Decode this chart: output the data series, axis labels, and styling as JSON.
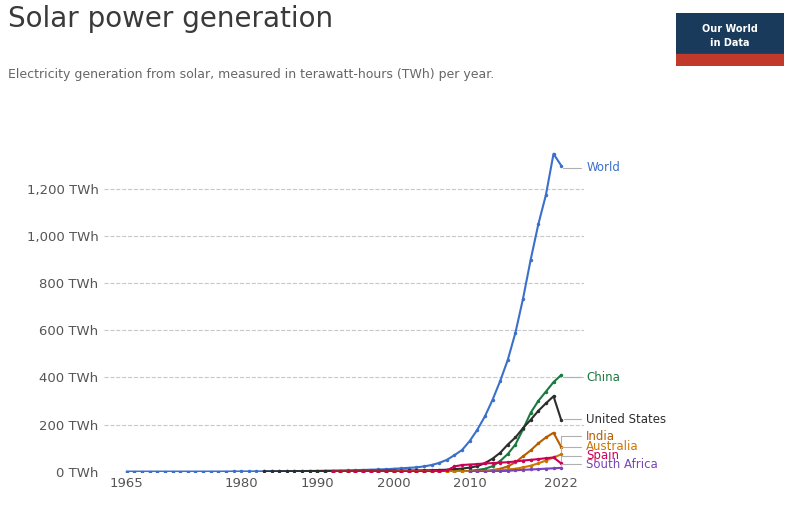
{
  "title": "Solar power generation",
  "subtitle": "Electricity generation from solar, measured in terawatt-hours (TWh) per year.",
  "background_color": "#ffffff",
  "grid_color": "#c8c8c8",
  "text_color": "#555555",
  "title_color": "#3a3a3a",
  "ylim": [
    0,
    1380
  ],
  "yticks": [
    0,
    200,
    400,
    600,
    800,
    1000,
    1200
  ],
  "ytick_labels": [
    "0 TWh",
    "200 TWh",
    "400 TWh",
    "600 TWh",
    "800 TWh",
    "1,000 TWh",
    "1,200 TWh"
  ],
  "xlim": [
    1962,
    2025
  ],
  "xticks": [
    1965,
    1980,
    1990,
    2000,
    2010,
    2022
  ],
  "series": {
    "World": {
      "color": "#3b6fcc",
      "years": [
        1965,
        1966,
        1967,
        1968,
        1969,
        1970,
        1971,
        1972,
        1973,
        1974,
        1975,
        1976,
        1977,
        1978,
        1979,
        1980,
        1981,
        1982,
        1983,
        1984,
        1985,
        1986,
        1987,
        1988,
        1989,
        1990,
        1991,
        1992,
        1993,
        1994,
        1995,
        1996,
        1997,
        1998,
        1999,
        2000,
        2001,
        2002,
        2003,
        2004,
        2005,
        2006,
        2007,
        2008,
        2009,
        2010,
        2011,
        2012,
        2013,
        2014,
        2015,
        2016,
        2017,
        2018,
        2019,
        2020,
        2021,
        2022
      ],
      "values": [
        0.1,
        0.1,
        0.1,
        0.1,
        0.1,
        0.1,
        0.1,
        0.1,
        0.1,
        0.1,
        0.2,
        0.3,
        0.3,
        0.4,
        0.5,
        0.6,
        0.7,
        0.9,
        1.1,
        1.4,
        1.6,
        1.8,
        2.0,
        2.3,
        2.7,
        3.0,
        3.5,
        4.0,
        4.5,
        5.0,
        6.0,
        7.0,
        8.0,
        9.0,
        10.0,
        12.0,
        14.0,
        16.0,
        18.0,
        22.0,
        28.0,
        37.0,
        50.0,
        70.0,
        92.0,
        130.0,
        178.0,
        235.0,
        305.0,
        385.0,
        475.0,
        590.0,
        735.0,
        900.0,
        1050.0,
        1175.0,
        1350.0,
        1300.0
      ]
    },
    "China": {
      "color": "#1a7a3e",
      "years": [
        1990,
        1991,
        1992,
        1993,
        1994,
        1995,
        1996,
        1997,
        1998,
        1999,
        2000,
        2001,
        2002,
        2003,
        2004,
        2005,
        2006,
        2007,
        2008,
        2009,
        2010,
        2011,
        2012,
        2013,
        2014,
        2015,
        2016,
        2017,
        2018,
        2019,
        2020,
        2021,
        2022
      ],
      "values": [
        0.01,
        0.01,
        0.01,
        0.01,
        0.01,
        0.01,
        0.01,
        0.01,
        0.01,
        0.02,
        0.02,
        0.05,
        0.07,
        0.1,
        0.15,
        0.2,
        0.3,
        0.5,
        0.8,
        1.5,
        3.0,
        7.0,
        12.0,
        23.0,
        45.0,
        75.0,
        115.0,
        180.0,
        250.0,
        300.0,
        340.0,
        380.0,
        410.0
      ]
    },
    "United States": {
      "color": "#2d2d2d",
      "years": [
        1983,
        1984,
        1985,
        1986,
        1987,
        1988,
        1989,
        1990,
        1991,
        1992,
        1993,
        1994,
        1995,
        1996,
        1997,
        1998,
        1999,
        2000,
        2001,
        2002,
        2003,
        2004,
        2005,
        2006,
        2007,
        2008,
        2009,
        2010,
        2011,
        2012,
        2013,
        2014,
        2015,
        2016,
        2017,
        2018,
        2019,
        2020,
        2021,
        2022
      ],
      "values": [
        0.5,
        0.8,
        1.2,
        1.5,
        1.8,
        2.0,
        2.2,
        2.5,
        2.7,
        2.9,
        3.0,
        3.2,
        3.4,
        3.6,
        3.7,
        3.8,
        4.0,
        4.2,
        4.5,
        4.8,
        5.2,
        5.5,
        6.0,
        7.0,
        8.0,
        10.0,
        13.0,
        17.0,
        23.0,
        36.0,
        55.0,
        80.0,
        115.0,
        145.0,
        185.0,
        220.0,
        258.0,
        290.0,
        320.0,
        220.0
      ]
    },
    "India": {
      "color": "#b85c00",
      "years": [
        1992,
        1993,
        1994,
        1995,
        1996,
        1997,
        1998,
        1999,
        2000,
        2001,
        2002,
        2003,
        2004,
        2005,
        2006,
        2007,
        2008,
        2009,
        2010,
        2011,
        2012,
        2013,
        2014,
        2015,
        2016,
        2017,
        2018,
        2019,
        2020,
        2021,
        2022
      ],
      "values": [
        0.01,
        0.01,
        0.02,
        0.02,
        0.03,
        0.04,
        0.05,
        0.06,
        0.07,
        0.08,
        0.09,
        0.1,
        0.12,
        0.15,
        0.2,
        0.25,
        0.3,
        0.5,
        0.8,
        1.5,
        3.0,
        6.5,
        12.0,
        22.0,
        40.0,
        65.0,
        90.0,
        120.0,
        145.0,
        165.0,
        105.0
      ]
    },
    "Australia": {
      "color": "#cc7700",
      "years": [
        2000,
        2001,
        2002,
        2003,
        2004,
        2005,
        2006,
        2007,
        2008,
        2009,
        2010,
        2011,
        2012,
        2013,
        2014,
        2015,
        2016,
        2017,
        2018,
        2019,
        2020,
        2021,
        2022
      ],
      "values": [
        0.05,
        0.06,
        0.07,
        0.08,
        0.09,
        0.1,
        0.12,
        0.15,
        0.2,
        0.3,
        0.5,
        0.9,
        2.0,
        4.0,
        6.0,
        9.0,
        12.0,
        18.0,
        25.0,
        35.0,
        47.0,
        60.0,
        73.0
      ]
    },
    "Spain": {
      "color": "#cc0055",
      "years": [
        1992,
        1993,
        1994,
        1995,
        1996,
        1997,
        1998,
        1999,
        2000,
        2001,
        2002,
        2003,
        2004,
        2005,
        2006,
        2007,
        2008,
        2009,
        2010,
        2011,
        2012,
        2013,
        2014,
        2015,
        2016,
        2017,
        2018,
        2019,
        2020,
        2021,
        2022
      ],
      "values": [
        0.005,
        0.005,
        0.01,
        0.01,
        0.01,
        0.02,
        0.02,
        0.03,
        0.04,
        0.05,
        0.07,
        0.1,
        0.2,
        0.6,
        2.0,
        5.0,
        22.0,
        28.0,
        30.0,
        32.0,
        35.0,
        36.0,
        38.0,
        40.0,
        43.0,
        47.0,
        50.0,
        53.0,
        57.0,
        60.0,
        35.0
      ]
    },
    "South Africa": {
      "color": "#7744bb",
      "years": [
        2010,
        2011,
        2012,
        2013,
        2014,
        2015,
        2016,
        2017,
        2018,
        2019,
        2020,
        2021,
        2022
      ],
      "values": [
        0.01,
        0.05,
        0.1,
        0.5,
        1.5,
        3.5,
        5.5,
        7.5,
        9.0,
        10.5,
        12.5,
        14.0,
        16.0
      ]
    }
  },
  "label_y_positions": {
    "World": 1290,
    "China": 400,
    "United States": 222,
    "India": 150,
    "Australia": 105,
    "Spain": 68,
    "South Africa": 32
  },
  "owid_box_color": "#1a3a5c",
  "owid_red": "#c0392b"
}
